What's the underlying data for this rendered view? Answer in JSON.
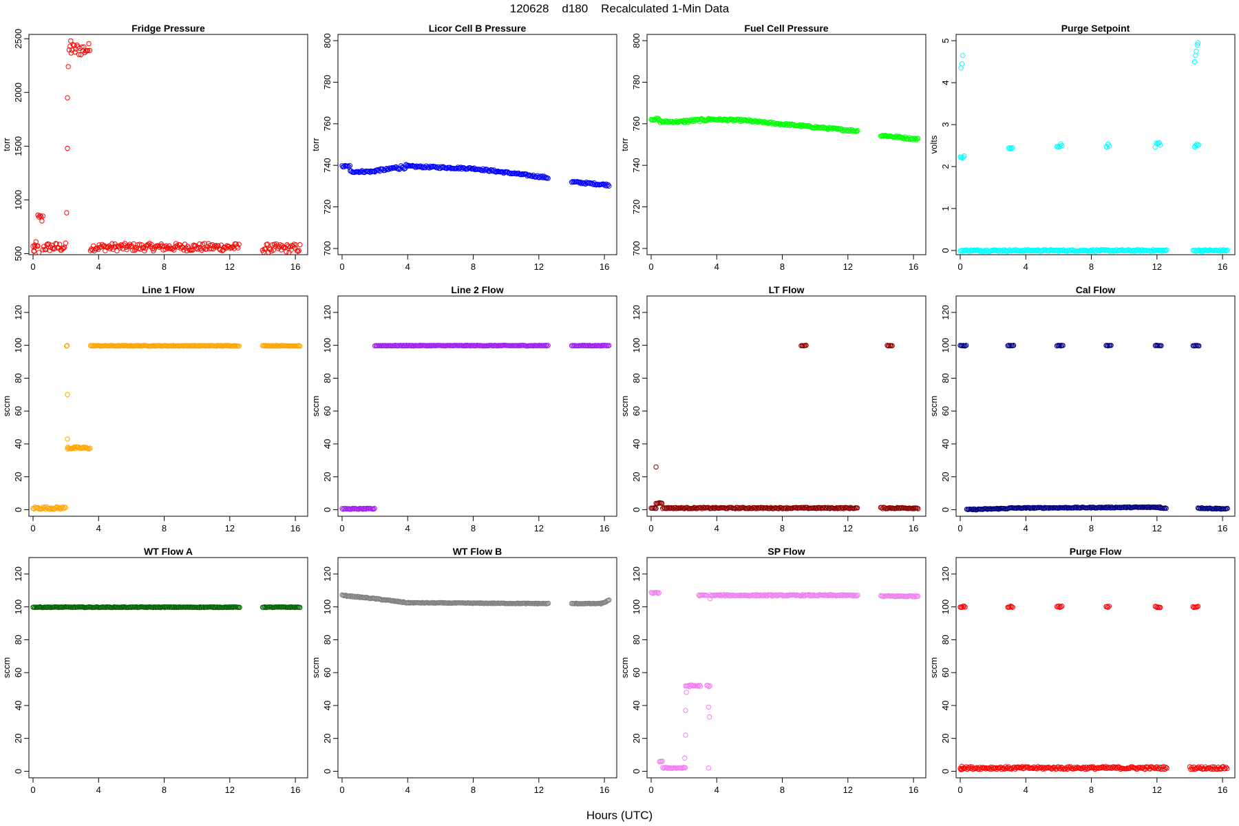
{
  "figure": {
    "title": "120628    d180    Recalculated 1-Min Data",
    "xlabel": "Hours (UTC)"
  },
  "chart_data": [
    {
      "type": "scatter",
      "title": "Fridge Pressure",
      "ylabel": "torr",
      "color": "#ff0000",
      "xlim": [
        0,
        16.5
      ],
      "ylim": [
        490,
        2540
      ],
      "xticks": [
        0,
        4,
        8,
        12,
        16
      ],
      "yticks": [
        500,
        1000,
        1500,
        2000,
        2500
      ],
      "segments": [
        {
          "x0": 0.0,
          "x1": 0.4,
          "y0": 550,
          "y1": 550,
          "spread": 60
        },
        {
          "x0": 0.3,
          "x1": 0.6,
          "y0": 820,
          "y1": 820,
          "spread": 50
        },
        {
          "x0": 0.6,
          "x1": 2.0,
          "y0": 560,
          "y1": 560,
          "spread": 40
        },
        {
          "x0": 2.2,
          "x1": 3.5,
          "y0": 2400,
          "y1": 2400,
          "spread": 60
        },
        {
          "x0": 3.5,
          "x1": 12.6,
          "y0": 560,
          "y1": 560,
          "spread": 35
        },
        {
          "x0": 14.0,
          "x1": 16.3,
          "y0": 550,
          "y1": 550,
          "spread": 40
        }
      ],
      "points": [
        [
          2.05,
          880
        ],
        [
          2.1,
          1480
        ],
        [
          2.1,
          1950
        ],
        [
          2.15,
          2240
        ],
        [
          2.3,
          2480
        ],
        [
          0.05,
          520
        ],
        [
          0.1,
          580
        ]
      ]
    },
    {
      "type": "scatter",
      "title": "Licor Cell B Pressure",
      "ylabel": "torr",
      "color": "#0000ff",
      "xlim": [
        0,
        16.5
      ],
      "ylim": [
        697,
        803
      ],
      "xticks": [
        0,
        4,
        8,
        12,
        16
      ],
      "yticks": [
        700,
        720,
        740,
        760,
        780,
        800
      ],
      "segments": [
        {
          "x0": 0.0,
          "x1": 0.5,
          "y0": 739.5,
          "y1": 739.5,
          "spread": 0.5
        },
        {
          "x0": 0.5,
          "x1": 2.0,
          "y0": 737,
          "y1": 737,
          "spread": 0.5
        },
        {
          "x0": 2.0,
          "x1": 3.0,
          "y0": 737.5,
          "y1": 738.2,
          "spread": 0.6
        },
        {
          "x0": 3.0,
          "x1": 4.0,
          "y0": 738.5,
          "y1": 739.5,
          "spread": 1.0
        },
        {
          "x0": 4.0,
          "x1": 8.0,
          "y0": 739.5,
          "y1": 738.5,
          "spread": 0.5
        },
        {
          "x0": 8.0,
          "x1": 12.6,
          "y0": 738.5,
          "y1": 734,
          "spread": 0.5
        },
        {
          "x0": 14.0,
          "x1": 16.3,
          "y0": 732,
          "y1": 730.5,
          "spread": 0.5
        }
      ],
      "points": []
    },
    {
      "type": "scatter",
      "title": "Fuel Cell Pressure",
      "ylabel": "torr",
      "color": "#00ff00",
      "xlim": [
        0,
        16.5
      ],
      "ylim": [
        697,
        803
      ],
      "xticks": [
        0,
        4,
        8,
        12,
        16
      ],
      "yticks": [
        700,
        720,
        740,
        760,
        780,
        800
      ],
      "segments": [
        {
          "x0": 0.0,
          "x1": 0.5,
          "y0": 762.2,
          "y1": 762.2,
          "spread": 0.5
        },
        {
          "x0": 0.5,
          "x1": 2.0,
          "y0": 761,
          "y1": 761,
          "spread": 0.5
        },
        {
          "x0": 2.0,
          "x1": 3.5,
          "y0": 761.2,
          "y1": 762,
          "spread": 0.7
        },
        {
          "x0": 3.5,
          "x1": 6.0,
          "y0": 762.2,
          "y1": 761.5,
          "spread": 0.5
        },
        {
          "x0": 6.0,
          "x1": 12.6,
          "y0": 761.3,
          "y1": 756.5,
          "spread": 0.5
        },
        {
          "x0": 14.0,
          "x1": 16.3,
          "y0": 754.5,
          "y1": 752.5,
          "spread": 0.5
        }
      ],
      "points": []
    },
    {
      "type": "scatter",
      "title": "Purge Setpoint",
      "ylabel": "volts",
      "color": "#00ffff",
      "xlim": [
        0,
        16.5
      ],
      "ylim": [
        -0.1,
        5.15
      ],
      "xticks": [
        0,
        4,
        8,
        12,
        16
      ],
      "yticks": [
        0,
        1,
        2,
        3,
        4,
        5
      ],
      "segments": [
        {
          "x0": 0.0,
          "x1": 12.6,
          "y0": 0,
          "y1": 0,
          "spread": 0.02
        },
        {
          "x0": 14.2,
          "x1": 16.3,
          "y0": 0,
          "y1": 0,
          "spread": 0.02
        },
        {
          "x0": 0.0,
          "x1": 0.25,
          "y0": 2.22,
          "y1": 2.22,
          "spread": 0.05
        },
        {
          "x0": 2.95,
          "x1": 3.2,
          "y0": 2.43,
          "y1": 2.43,
          "spread": 0.04
        },
        {
          "x0": 5.9,
          "x1": 6.2,
          "y0": 2.5,
          "y1": 2.5,
          "spread": 0.05
        },
        {
          "x0": 8.9,
          "x1": 9.1,
          "y0": 2.5,
          "y1": 2.5,
          "spread": 0.04
        },
        {
          "x0": 11.9,
          "x1": 12.25,
          "y0": 2.52,
          "y1": 2.52,
          "spread": 0.06
        },
        {
          "x0": 14.3,
          "x1": 14.55,
          "y0": 2.5,
          "y1": 2.5,
          "spread": 0.04
        }
      ],
      "points": [
        [
          0.05,
          4.35
        ],
        [
          0.1,
          4.45
        ],
        [
          0.15,
          4.65
        ],
        [
          14.3,
          4.5
        ],
        [
          14.35,
          4.65
        ],
        [
          14.4,
          4.75
        ],
        [
          14.45,
          4.9
        ],
        [
          14.5,
          4.95
        ]
      ]
    },
    {
      "type": "scatter",
      "title": "Line 1 Flow",
      "ylabel": "sccm",
      "color": "#ffa500",
      "xlim": [
        0,
        16.5
      ],
      "ylim": [
        -4,
        130
      ],
      "xticks": [
        0,
        4,
        8,
        12,
        16
      ],
      "yticks": [
        0,
        20,
        40,
        60,
        80,
        100,
        120
      ],
      "segments": [
        {
          "x0": 0.0,
          "x1": 2.0,
          "y0": 1,
          "y1": 1,
          "spread": 0.8
        },
        {
          "x0": 2.1,
          "x1": 3.5,
          "y0": 37.5,
          "y1": 37.5,
          "spread": 0.7
        },
        {
          "x0": 3.5,
          "x1": 12.6,
          "y0": 99.7,
          "y1": 99.7,
          "spread": 0.2
        },
        {
          "x0": 14.0,
          "x1": 16.3,
          "y0": 99.7,
          "y1": 99.7,
          "spread": 0.2
        }
      ],
      "points": [
        [
          2.05,
          99.5
        ],
        [
          2.08,
          99.8
        ],
        [
          2.1,
          70
        ],
        [
          2.1,
          43
        ],
        [
          2.12,
          38
        ]
      ]
    },
    {
      "type": "scatter",
      "title": "Line 2 Flow",
      "ylabel": "sccm",
      "color": "#a020f0",
      "xlim": [
        0,
        16.5
      ],
      "ylim": [
        -4,
        130
      ],
      "xticks": [
        0,
        4,
        8,
        12,
        16
      ],
      "yticks": [
        0,
        20,
        40,
        60,
        80,
        100,
        120
      ],
      "segments": [
        {
          "x0": 0.0,
          "x1": 2.0,
          "y0": 0.5,
          "y1": 0.5,
          "spread": 0.3
        },
        {
          "x0": 2.0,
          "x1": 12.6,
          "y0": 99.8,
          "y1": 99.8,
          "spread": 0.2
        },
        {
          "x0": 14.0,
          "x1": 16.3,
          "y0": 99.8,
          "y1": 99.8,
          "spread": 0.2
        }
      ],
      "points": []
    },
    {
      "type": "scatter",
      "title": "LT Flow",
      "ylabel": "sccm",
      "color": "#8b0000",
      "xlim": [
        0,
        16.5
      ],
      "ylim": [
        -4,
        130
      ],
      "xticks": [
        0,
        4,
        8,
        12,
        16
      ],
      "yticks": [
        0,
        20,
        40,
        60,
        80,
        100,
        120
      ],
      "segments": [
        {
          "x0": 0.0,
          "x1": 0.3,
          "y0": 1,
          "y1": 1,
          "spread": 0.3
        },
        {
          "x0": 0.3,
          "x1": 0.7,
          "y0": 4,
          "y1": 4,
          "spread": 0.3
        },
        {
          "x0": 0.7,
          "x1": 12.6,
          "y0": 1,
          "y1": 1,
          "spread": 0.4
        },
        {
          "x0": 14.0,
          "x1": 16.3,
          "y0": 1,
          "y1": 1,
          "spread": 0.4
        },
        {
          "x0": 9.15,
          "x1": 9.5,
          "y0": 99.8,
          "y1": 99.8,
          "spread": 0.2
        },
        {
          "x0": 14.4,
          "x1": 14.7,
          "y0": 99.8,
          "y1": 99.8,
          "spread": 0.2
        }
      ],
      "points": [
        [
          0.3,
          26
        ]
      ]
    },
    {
      "type": "scatter",
      "title": "Cal Flow",
      "ylabel": "sccm",
      "color": "#000080",
      "xlim": [
        0,
        16.5
      ],
      "ylim": [
        -4,
        130
      ],
      "xticks": [
        0,
        4,
        8,
        12,
        16
      ],
      "yticks": [
        0,
        20,
        40,
        60,
        80,
        100,
        120
      ],
      "segments": [
        {
          "x0": 0.4,
          "x1": 3.0,
          "y0": 0,
          "y1": 0.8,
          "spread": 0.3
        },
        {
          "x0": 3.0,
          "x1": 12.2,
          "y0": 1,
          "y1": 1.5,
          "spread": 0.3
        },
        {
          "x0": 12.2,
          "x1": 12.6,
          "y0": 1,
          "y1": 1,
          "spread": 0.3
        },
        {
          "x0": 14.5,
          "x1": 16.3,
          "y0": 1,
          "y1": 0.5,
          "spread": 0.3
        },
        {
          "x0": 0.0,
          "x1": 0.4,
          "y0": 99.8,
          "y1": 99.8,
          "spread": 0.2
        },
        {
          "x0": 2.9,
          "x1": 3.3,
          "y0": 99.8,
          "y1": 99.8,
          "spread": 0.2
        },
        {
          "x0": 5.9,
          "x1": 6.3,
          "y0": 99.8,
          "y1": 99.8,
          "spread": 0.2
        },
        {
          "x0": 8.9,
          "x1": 9.2,
          "y0": 99.8,
          "y1": 99.8,
          "spread": 0.2
        },
        {
          "x0": 11.9,
          "x1": 12.3,
          "y0": 99.8,
          "y1": 99.8,
          "spread": 0.2
        },
        {
          "x0": 14.2,
          "x1": 14.6,
          "y0": 99.8,
          "y1": 99.8,
          "spread": 0.2
        }
      ],
      "points": []
    },
    {
      "type": "scatter",
      "title": "WT Flow A",
      "ylabel": "sccm",
      "color": "#006400",
      "xlim": [
        0,
        16.5
      ],
      "ylim": [
        -4,
        130
      ],
      "xticks": [
        0,
        4,
        8,
        12,
        16
      ],
      "yticks": [
        0,
        20,
        40,
        60,
        80,
        100,
        120
      ],
      "segments": [
        {
          "x0": 0.0,
          "x1": 12.6,
          "y0": 99.8,
          "y1": 99.8,
          "spread": 0.2
        },
        {
          "x0": 14.0,
          "x1": 16.3,
          "y0": 99.8,
          "y1": 99.8,
          "spread": 0.2
        }
      ],
      "points": []
    },
    {
      "type": "scatter",
      "title": "WT Flow B",
      "ylabel": "sccm",
      "color": "#808080",
      "xlim": [
        0,
        16.5
      ],
      "ylim": [
        -4,
        130
      ],
      "xticks": [
        0,
        4,
        8,
        12,
        16
      ],
      "yticks": [
        0,
        20,
        40,
        60,
        80,
        100,
        120
      ],
      "segments": [
        {
          "x0": 0.0,
          "x1": 2.0,
          "y0": 107,
          "y1": 105,
          "spread": 0.3
        },
        {
          "x0": 2.0,
          "x1": 4.0,
          "y0": 105,
          "y1": 102.5,
          "spread": 0.3
        },
        {
          "x0": 4.0,
          "x1": 12.6,
          "y0": 102.5,
          "y1": 102,
          "spread": 0.2
        },
        {
          "x0": 14.0,
          "x1": 15.8,
          "y0": 102,
          "y1": 102,
          "spread": 0.2
        },
        {
          "x0": 15.8,
          "x1": 16.3,
          "y0": 102,
          "y1": 104,
          "spread": 0.3
        }
      ],
      "points": []
    },
    {
      "type": "scatter",
      "title": "SP Flow",
      "ylabel": "sccm",
      "color": "#ee82ee",
      "xlim": [
        0,
        16.5
      ],
      "ylim": [
        -4,
        130
      ],
      "xticks": [
        0,
        4,
        8,
        12,
        16
      ],
      "yticks": [
        0,
        20,
        40,
        60,
        80,
        100,
        120
      ],
      "segments": [
        {
          "x0": 0.0,
          "x1": 0.5,
          "y0": 108.5,
          "y1": 108.5,
          "spread": 0.3
        },
        {
          "x0": 0.5,
          "x1": 0.7,
          "y0": 6,
          "y1": 6,
          "spread": 0.3
        },
        {
          "x0": 0.7,
          "x1": 2.1,
          "y0": 2,
          "y1": 2,
          "spread": 0.3
        },
        {
          "x0": 2.1,
          "x1": 3.0,
          "y0": 52,
          "y1": 52,
          "spread": 0.5
        },
        {
          "x0": 2.9,
          "x1": 3.4,
          "y0": 107,
          "y1": 107,
          "spread": 0.3
        },
        {
          "x0": 3.4,
          "x1": 3.6,
          "y0": 52,
          "y1": 52,
          "spread": 0.5
        },
        {
          "x0": 3.6,
          "x1": 12.6,
          "y0": 107,
          "y1": 107,
          "spread": 0.4
        },
        {
          "x0": 14.0,
          "x1": 16.3,
          "y0": 106.5,
          "y1": 106.5,
          "spread": 0.4
        }
      ],
      "points": [
        [
          2.05,
          8
        ],
        [
          2.1,
          22
        ],
        [
          2.1,
          37
        ],
        [
          2.15,
          48
        ],
        [
          3.5,
          39
        ],
        [
          3.55,
          33
        ],
        [
          3.5,
          2
        ],
        [
          3.6,
          105
        ]
      ]
    },
    {
      "type": "scatter",
      "title": "Purge Flow",
      "ylabel": "sccm",
      "color": "#ff0000",
      "xlim": [
        0,
        16.5
      ],
      "ylim": [
        -4,
        130
      ],
      "xticks": [
        0,
        4,
        8,
        12,
        16
      ],
      "yticks": [
        0,
        20,
        40,
        60,
        80,
        100,
        120
      ],
      "segments": [
        {
          "x0": 0.0,
          "x1": 12.6,
          "y0": 2,
          "y1": 2,
          "spread": 0.8
        },
        {
          "x0": 14.0,
          "x1": 16.3,
          "y0": 2,
          "y1": 2,
          "spread": 0.8
        },
        {
          "x0": 0.0,
          "x1": 0.3,
          "y0": 100,
          "y1": 100,
          "spread": 0.6
        },
        {
          "x0": 2.9,
          "x1": 3.2,
          "y0": 100,
          "y1": 100,
          "spread": 0.4
        },
        {
          "x0": 5.9,
          "x1": 6.2,
          "y0": 100,
          "y1": 100,
          "spread": 0.5
        },
        {
          "x0": 8.9,
          "x1": 9.1,
          "y0": 100,
          "y1": 100,
          "spread": 0.4
        },
        {
          "x0": 11.9,
          "x1": 12.2,
          "y0": 100,
          "y1": 100,
          "spread": 0.5
        },
        {
          "x0": 14.2,
          "x1": 14.5,
          "y0": 100,
          "y1": 100,
          "spread": 0.5
        }
      ],
      "points": [
        [
          0.05,
          1
        ],
        [
          0.1,
          3
        ]
      ]
    }
  ]
}
